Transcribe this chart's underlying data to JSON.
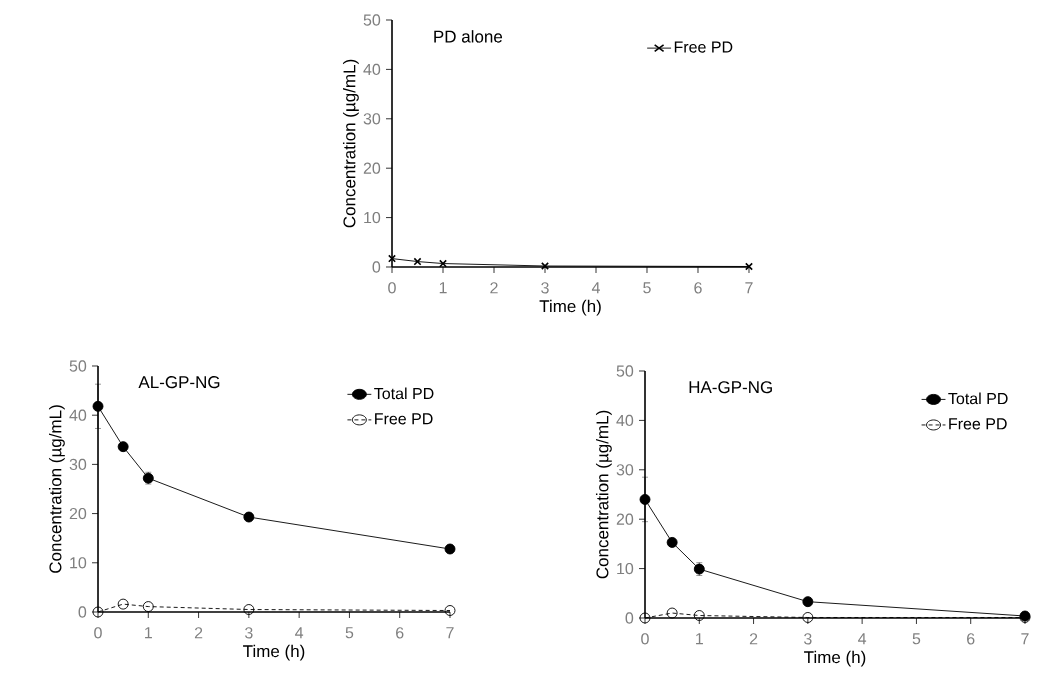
{
  "chart_data": [
    {
      "type": "line",
      "title": "PD alone",
      "xlabel": "Time (h)",
      "ylabel": "Concentration (µg/mL)",
      "x": [
        0,
        0.5,
        1,
        3,
        7
      ],
      "xlim": [
        0,
        7
      ],
      "ylim": [
        0,
        50
      ],
      "xticks": [
        0,
        1,
        2,
        3,
        4,
        5,
        6,
        7
      ],
      "yticks": [
        0,
        10,
        20,
        30,
        40,
        50
      ],
      "legend": "top right",
      "grid": false,
      "series": [
        {
          "name": "Free PD",
          "color": "#000000",
          "marker": "cross",
          "line_style": "solid",
          "values": [
            1.7,
            1.1,
            0.7,
            0.2,
            0.1
          ]
        }
      ]
    },
    {
      "type": "line",
      "title": "AL-GP-NG",
      "xlabel": "Time (h)",
      "ylabel": "Concentration (µg/mL)",
      "x": [
        0,
        0.5,
        1,
        3,
        7
      ],
      "xlim": [
        0,
        7
      ],
      "ylim": [
        0,
        50
      ],
      "xticks": [
        0,
        1,
        2,
        3,
        4,
        5,
        6,
        7
      ],
      "yticks": [
        0,
        10,
        20,
        30,
        40,
        50
      ],
      "legend": "top right",
      "grid": false,
      "series": [
        {
          "name": "Total PD",
          "color": "#000000",
          "marker": "circle",
          "line_style": "solid",
          "values": [
            41.8,
            33.6,
            27.2,
            19.3,
            12.8
          ],
          "errors": [
            4.5,
            0.8,
            1.2,
            null,
            null
          ]
        },
        {
          "name": "Free PD",
          "color": "#000000",
          "marker": "circle",
          "line_style": "dashed",
          "values": [
            0,
            1.6,
            1.1,
            0.5,
            0.3
          ]
        }
      ]
    },
    {
      "type": "line",
      "title": "HA-GP-NG",
      "xlabel": "Time (h)",
      "ylabel": "Concentration (µg/mL)",
      "x": [
        0,
        0.5,
        1,
        3,
        7
      ],
      "xlim": [
        0,
        7
      ],
      "ylim": [
        0,
        50
      ],
      "xticks": [
        0,
        1,
        2,
        3,
        4,
        5,
        6,
        7
      ],
      "yticks": [
        0,
        10,
        20,
        30,
        40,
        50
      ],
      "legend": "top right",
      "grid": false,
      "series": [
        {
          "name": "Total PD",
          "color": "#000000",
          "marker": "circle",
          "line_style": "solid",
          "values": [
            24,
            15.3,
            9.9,
            3.3,
            0.4
          ],
          "errors": [
            4.5,
            0.8,
            1.3,
            null,
            null
          ]
        },
        {
          "name": "Free PD",
          "color": "#000000",
          "marker": "circle",
          "line_style": "dashed",
          "values": [
            0,
            1.0,
            0.5,
            0.1,
            0.1
          ]
        }
      ]
    }
  ]
}
